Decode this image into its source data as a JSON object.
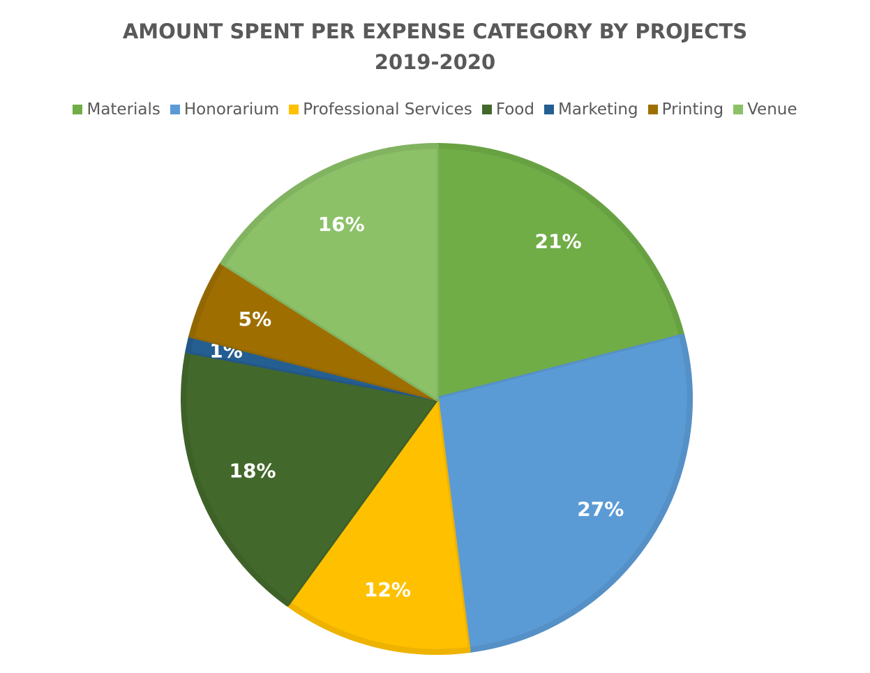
{
  "chart_data": {
    "type": "pie",
    "title": [
      "AMOUNT SPENT PER EXPENSE CATEGORY BY PROJECTS",
      "2019-2020"
    ],
    "categories": [
      "Materials",
      "Honorarium",
      "Professional Services",
      "Food",
      "Marketing",
      "Printing",
      "Venue"
    ],
    "values": [
      21,
      27,
      12,
      18,
      1,
      5,
      16
    ],
    "value_labels": [
      "21%",
      "27%",
      "12%",
      "18%",
      "1%",
      "5%",
      "16%"
    ],
    "colors": [
      "#70ad47",
      "#5b9bd5",
      "#ffc000",
      "#43682b",
      "#255e91",
      "#9e6f00",
      "#8cc168"
    ],
    "legend": "top"
  }
}
